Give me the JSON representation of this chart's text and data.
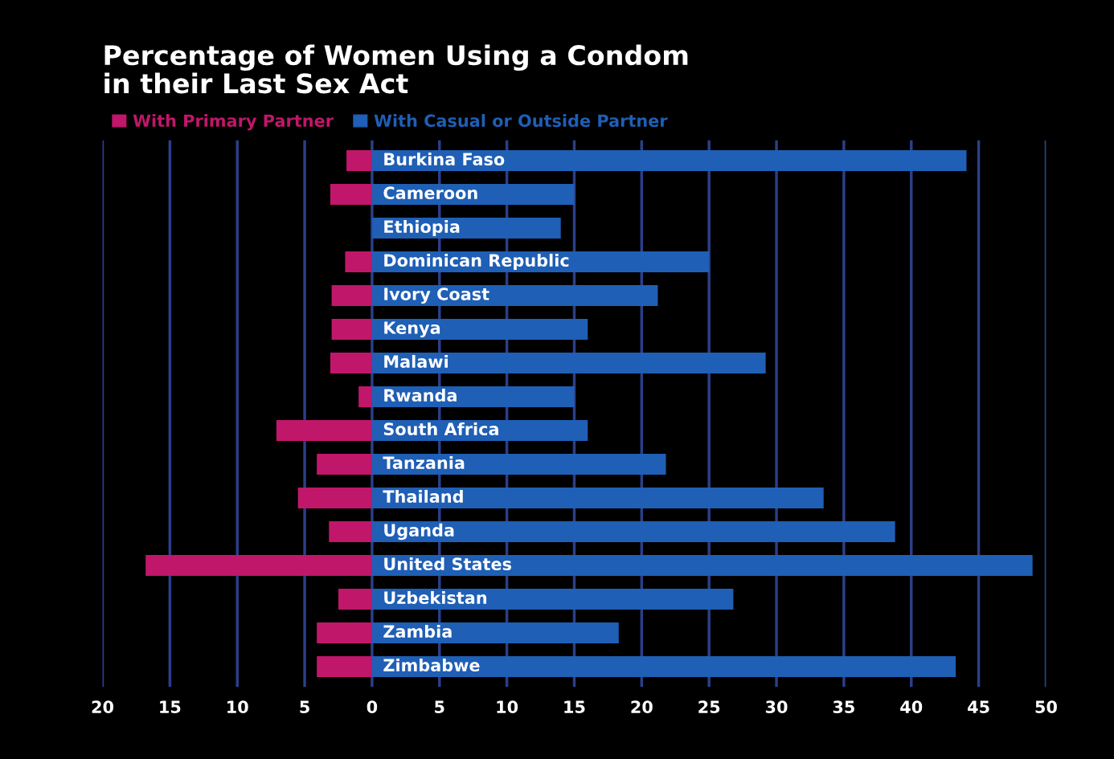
{
  "chart_data": {
    "type": "bar",
    "orientation": "horizontal",
    "title": "Percentage of Women Using a Condom\nin their Last Sex Act",
    "categories": [
      "Burkina Faso",
      "Cameroon",
      "Ethiopia",
      "Dominican Republic",
      "Ivory Coast",
      "Kenya",
      "Malawi",
      "Rwanda",
      "South Africa",
      "Tanzania",
      "Thailand",
      "Uganda",
      "United States",
      "Uzbekistan",
      "Zambia",
      "Zimbabwe"
    ],
    "series": [
      {
        "name": "With Primary Partner",
        "color": "#c0176a",
        "values": [
          -1.9,
          -3.1,
          0,
          -2.0,
          -3.0,
          -3.0,
          -3.1,
          -1.0,
          -7.1,
          -4.1,
          -5.5,
          -3.2,
          -16.8,
          -2.5,
          -4.1,
          -4.1
        ]
      },
      {
        "name": "With Casual or Outside Partner",
        "color": "#1f5fb5",
        "values": [
          44.1,
          15.0,
          14.0,
          25.0,
          21.2,
          16.0,
          29.2,
          15.0,
          16.0,
          21.8,
          33.5,
          38.8,
          49.0,
          26.8,
          18.3,
          43.3
        ]
      }
    ],
    "xlim": [
      -20,
      50
    ],
    "xticks": [
      {
        "value": -20,
        "label": "20"
      },
      {
        "value": -15,
        "label": "15"
      },
      {
        "value": -10,
        "label": "10"
      },
      {
        "value": -5,
        "label": "5"
      },
      0,
      5,
      10,
      15,
      20,
      25,
      30,
      35,
      40,
      45,
      50
    ],
    "grid": "x",
    "legend": "top left",
    "stacked": true
  }
}
